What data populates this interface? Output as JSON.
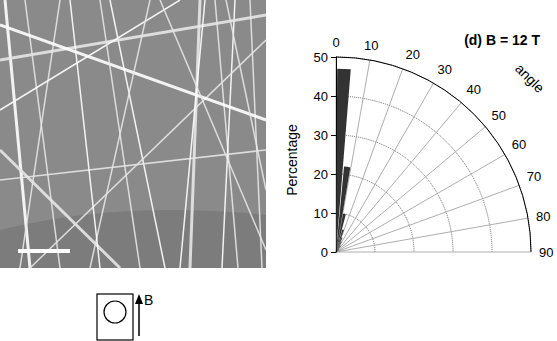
{
  "chart_data": {
    "type": "polar_bar",
    "title": "(d) B = 12 T",
    "radius_label": "Percentage",
    "angle_label": "angle",
    "bins": [
      0,
      5,
      10,
      15,
      20,
      25,
      30,
      35,
      40,
      45,
      50,
      55,
      60,
      65,
      70,
      75,
      80,
      85,
      90
    ],
    "values": [
      47,
      22,
      10,
      6,
      4,
      3,
      2,
      2,
      1,
      1,
      1,
      0.5,
      0.5,
      0,
      0,
      0,
      0,
      0
    ],
    "color": "#333333",
    "rlim": [
      0,
      50
    ],
    "rticks": [
      0,
      10,
      20,
      30,
      40,
      50
    ],
    "anglelim": [
      0,
      90
    ],
    "angleticks": [
      0,
      10,
      20,
      30,
      40,
      50,
      60,
      70,
      80,
      90
    ],
    "grid": true
  },
  "inset": {
    "arrow_label": "B"
  }
}
